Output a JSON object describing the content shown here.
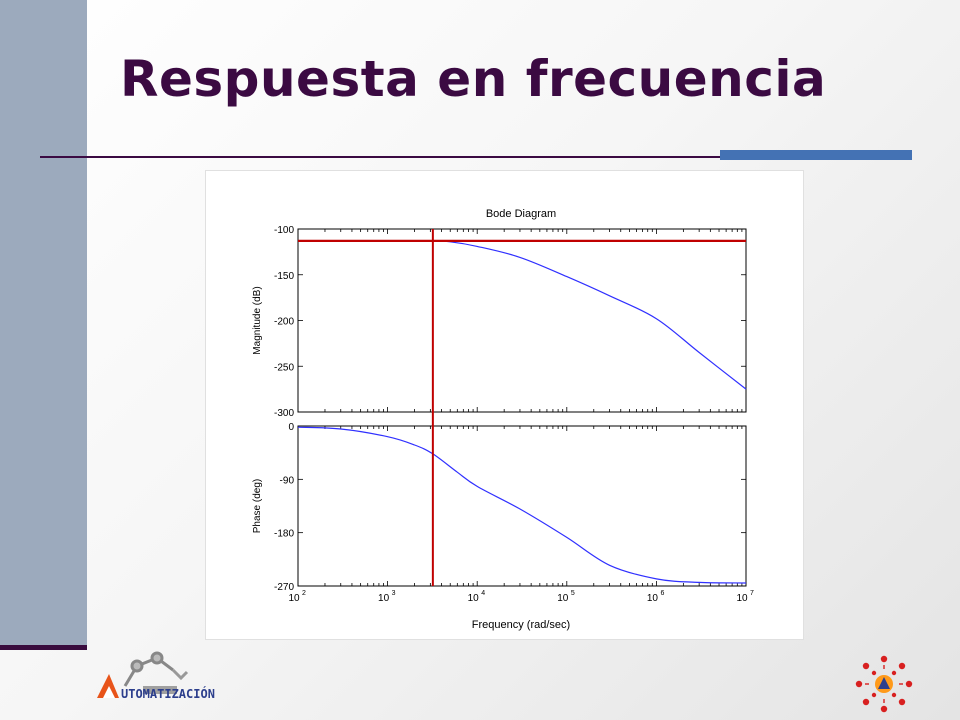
{
  "slide": {
    "title": "Respuesta en frecuencia",
    "colors": {
      "title": "#3b0a42",
      "sidebar": "#9caabd",
      "rule_accent": "#4472b4",
      "marker": "#c00000",
      "curve": "#3030ff"
    },
    "footer_logo_text": "UTOMATIZACIÓN"
  },
  "chart_data": {
    "type": "line",
    "title": "Bode Diagram",
    "xlabel": "Frequency  (rad/sec)",
    "xscale": "log",
    "xlim": [
      100,
      10000000
    ],
    "x_tick_labels": [
      {
        "base": "10",
        "exp": "2"
      },
      {
        "base": "10",
        "exp": "3"
      },
      {
        "base": "10",
        "exp": "4"
      },
      {
        "base": "10",
        "exp": "5"
      },
      {
        "base": "10",
        "exp": "6"
      },
      {
        "base": "10",
        "exp": "7"
      }
    ],
    "markers": {
      "horizontal_magnitude_dB": -113,
      "vertical_frequency": 3200
    },
    "panels": [
      {
        "name": "magnitude",
        "ylabel": "Magnitude (dB)",
        "ylim": [
          -300,
          -100
        ],
        "yticks": [
          -100,
          -150,
          -200,
          -250,
          -300
        ],
        "ytick_labels": [
          "-100",
          "-150",
          "-200",
          "-250",
          "-300"
        ],
        "x": [
          100,
          1000,
          3000,
          5000,
          10000,
          30000,
          100000,
          300000,
          1000000,
          3000000,
          10000000
        ],
        "y": [
          -113,
          -113,
          -113,
          -114,
          -119,
          -131,
          -152,
          -173,
          -198,
          -235,
          -275
        ]
      },
      {
        "name": "phase",
        "ylabel": "Phase (deg)",
        "ylim": [
          -270,
          0
        ],
        "yticks": [
          0,
          -90,
          -180,
          -270
        ],
        "ytick_labels": [
          "0",
          "-90",
          "-180",
          "-270"
        ],
        "x": [
          100,
          300,
          1000,
          2000,
          3200,
          6000,
          10000,
          30000,
          100000,
          300000,
          1000000,
          3000000,
          10000000
        ],
        "y": [
          -2,
          -5,
          -18,
          -32,
          -47,
          -78,
          -102,
          -140,
          -188,
          -235,
          -258,
          -264,
          -265
        ]
      }
    ]
  }
}
